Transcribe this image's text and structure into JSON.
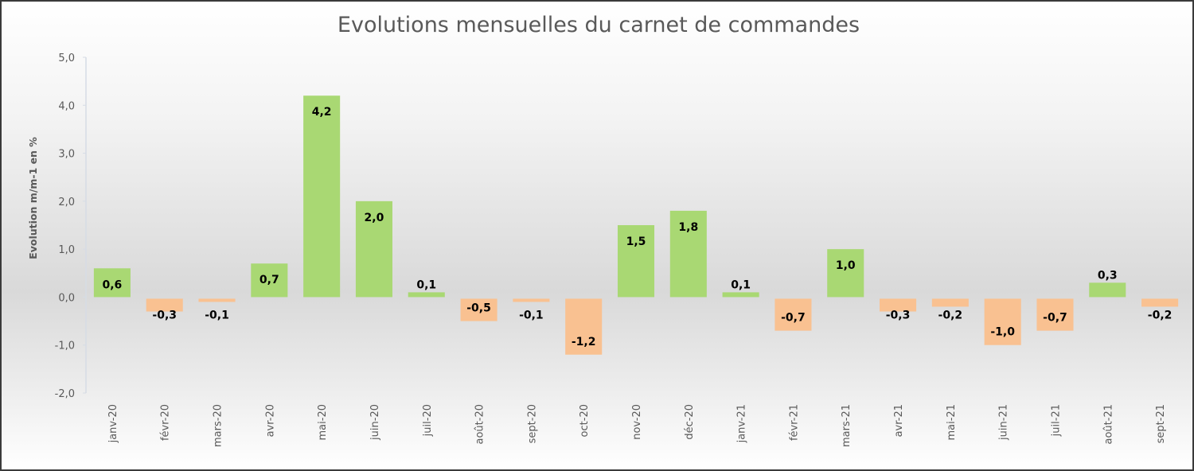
{
  "chart_data": {
    "type": "bar",
    "title": "Evolutions mensuelles du carnet de commandes",
    "xlabel": "",
    "ylabel": "Evolution m/m-1 en %",
    "ylim": [
      -2.0,
      5.0
    ],
    "yticks": [
      5.0,
      4.0,
      3.0,
      2.0,
      1.0,
      0.0,
      -1.0,
      -2.0
    ],
    "ytick_labels": [
      "5,0",
      "4,0",
      "3,0",
      "2,0",
      "1,0",
      "0,0",
      "-1,0",
      "-2,0"
    ],
    "grid": false,
    "legend": "none",
    "categories": [
      "janv-20",
      "févr-20",
      "mars-20",
      "avr-20",
      "mai-20",
      "juin-20",
      "juil-20",
      "août-20",
      "sept-20",
      "oct-20",
      "nov-20",
      "déc-20",
      "janv-21",
      "févr-21",
      "mars-21",
      "avr-21",
      "mai-21",
      "juin-21",
      "juil-21",
      "août-21",
      "sept-21"
    ],
    "values": [
      0.6,
      -0.3,
      -0.1,
      0.7,
      4.2,
      2.0,
      0.1,
      -0.5,
      -0.1,
      -1.2,
      1.5,
      1.8,
      0.1,
      -0.7,
      1.0,
      -0.3,
      -0.2,
      -1.0,
      -0.7,
      0.3,
      -0.2
    ],
    "value_labels": [
      "0,6",
      "-0,3",
      "-0,1",
      "0,7",
      "4,2",
      "2,0",
      "0,1",
      "-0,5",
      "-0,1",
      "-1,2",
      "1,5",
      "1,8",
      "0,1",
      "-0,7",
      "1,0",
      "-0,3",
      "-0,2",
      "-1,0",
      "-0,7",
      "0,3",
      "-0,2"
    ],
    "colors": {
      "positive": "#a9d873",
      "negative": "#f9c191"
    }
  }
}
